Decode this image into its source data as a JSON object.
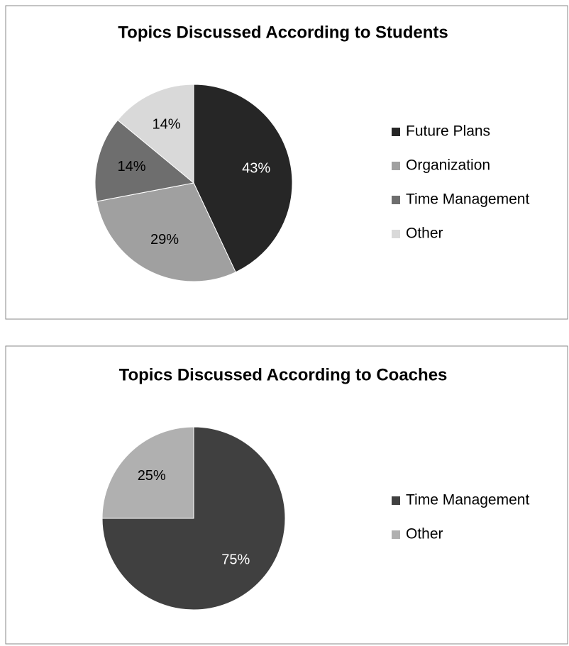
{
  "chart_data": [
    {
      "type": "pie",
      "title": "Topics Discussed According to Students",
      "categories": [
        "Future Plans",
        "Organization",
        "Time Management",
        "Other"
      ],
      "values": [
        43,
        29,
        14,
        14
      ],
      "value_labels": [
        "43%",
        "29%",
        "14%",
        "14%"
      ],
      "colors": [
        "#262626",
        "#a0a0a0",
        "#6e6e6e",
        "#d9d9d9"
      ],
      "legend": "right"
    },
    {
      "type": "pie",
      "title": "Topics Discussed According to Coaches",
      "categories": [
        "Time Management",
        "Other"
      ],
      "values": [
        75,
        25
      ],
      "value_labels": [
        "75%",
        "25%"
      ],
      "colors": [
        "#404040",
        "#b0b0b0"
      ],
      "legend": "right"
    }
  ]
}
